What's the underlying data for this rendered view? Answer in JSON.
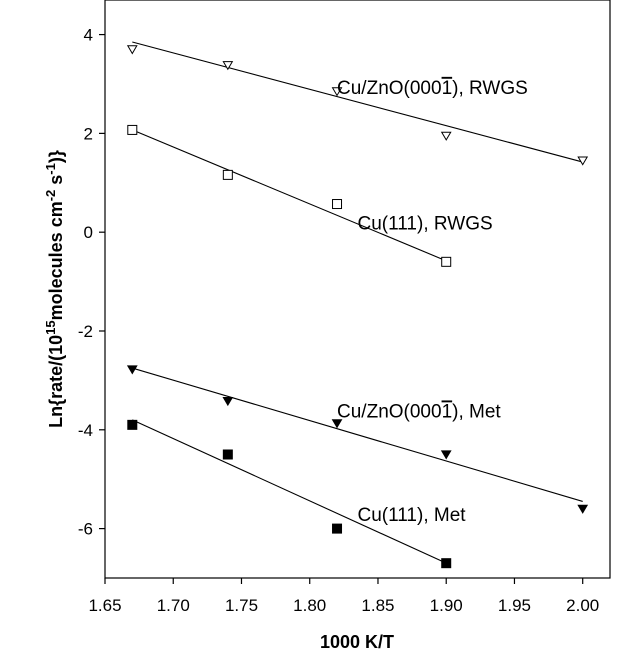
{
  "chart_data": {
    "type": "scatter",
    "title": "",
    "xlabel": "1000 K/T",
    "ylabel_parts": {
      "main": "Ln{rate/(10",
      "sup1": "15",
      "mid": "molecules cm",
      "sup2": "-2",
      "mid2": " s",
      "sup3": "-1",
      "end": ")}"
    },
    "xlim": [
      1.65,
      2.02
    ],
    "ylim": [
      -7,
      4.7
    ],
    "x_ticks": [
      1.65,
      1.7,
      1.75,
      1.8,
      1.85,
      1.9,
      1.95,
      2.0
    ],
    "x_tick_labels": [
      "1.65",
      "1.70",
      "1.75",
      "1.80",
      "1.85",
      "1.90",
      "1.95",
      "2.00"
    ],
    "y_ticks": [
      4,
      2,
      0,
      -2,
      -4,
      -6
    ],
    "y_tick_labels": [
      "4",
      "2",
      "0",
      "-2",
      "-4",
      "-6"
    ],
    "grid": false,
    "series": [
      {
        "name_parts": {
          "pre": "Cu/ZnO(000",
          "bar": "1",
          "post": "), RWGS"
        },
        "marker": "triangle-down-open",
        "x": [
          1.67,
          1.74,
          1.82,
          1.9,
          2.0
        ],
        "y": [
          3.7,
          3.38,
          2.85,
          1.95,
          1.45
        ],
        "fit": [
          [
            1.67,
            3.85
          ],
          [
            2.0,
            1.42
          ]
        ],
        "label_anchor": [
          1.82,
          2.8
        ]
      },
      {
        "name_parts": {
          "pre": "Cu(111), RWGS",
          "bar": "",
          "post": ""
        },
        "marker": "square-open",
        "x": [
          1.67,
          1.74,
          1.82,
          1.9
        ],
        "y": [
          2.07,
          1.16,
          0.57,
          -0.6
        ],
        "fit": [
          [
            1.67,
            2.07
          ],
          [
            1.9,
            -0.58
          ]
        ],
        "label_anchor": [
          1.835,
          0.05
        ]
      },
      {
        "name_parts": {
          "pre": "Cu/ZnO(000",
          "bar": "1",
          "post": "), Met"
        },
        "marker": "triangle-down-filled",
        "x": [
          1.67,
          1.74,
          1.82,
          1.9,
          2.0
        ],
        "y": [
          -2.78,
          -3.42,
          -3.87,
          -4.5,
          -5.6
        ],
        "fit": [
          [
            1.67,
            -2.75
          ],
          [
            2.0,
            -5.45
          ]
        ],
        "label_anchor": [
          1.82,
          -3.75
        ]
      },
      {
        "name_parts": {
          "pre": "Cu(111), Met",
          "bar": "",
          "post": ""
        },
        "marker": "square-filled",
        "x": [
          1.67,
          1.74,
          1.82,
          1.9
        ],
        "y": [
          -3.9,
          -4.5,
          -6.0,
          -6.7
        ],
        "fit": [
          [
            1.67,
            -3.8
          ],
          [
            1.9,
            -6.7
          ]
        ],
        "label_anchor": [
          1.835,
          -5.85
        ]
      }
    ]
  }
}
